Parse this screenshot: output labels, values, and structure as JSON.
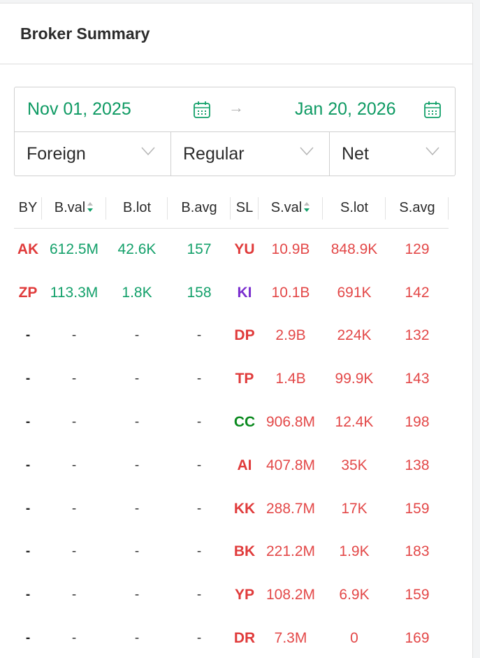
{
  "panel": {
    "title": "Broker Summary"
  },
  "date_range": {
    "start": "Nov 01, 2025",
    "end": "Jan 20, 2026",
    "arrow": "→"
  },
  "selects": {
    "investor": "Foreign",
    "market": "Regular",
    "mode": "Net"
  },
  "columns": [
    "BY",
    "B.val",
    "B.lot",
    "B.avg",
    "SL",
    "S.val",
    "S.lot",
    "S.avg"
  ],
  "rows": [
    {
      "by": "AK",
      "bval": "612.5M",
      "blot": "42.6K",
      "bavg": "157",
      "sl": "YU",
      "sl_color": "red",
      "sval": "10.9B",
      "slot": "848.9K",
      "savg": "129"
    },
    {
      "by": "ZP",
      "bval": "113.3M",
      "blot": "1.8K",
      "bavg": "158",
      "sl": "KI",
      "sl_color": "purple",
      "sval": "10.1B",
      "slot": "691K",
      "savg": "142"
    },
    {
      "by": "-",
      "bval": "-",
      "blot": "-",
      "bavg": "-",
      "sl": "DP",
      "sl_color": "red",
      "sval": "2.9B",
      "slot": "224K",
      "savg": "132"
    },
    {
      "by": "-",
      "bval": "-",
      "blot": "-",
      "bavg": "-",
      "sl": "TP",
      "sl_color": "red",
      "sval": "1.4B",
      "slot": "99.9K",
      "savg": "143"
    },
    {
      "by": "-",
      "bval": "-",
      "blot": "-",
      "bavg": "-",
      "sl": "CC",
      "sl_color": "dkgreen",
      "sval": "906.8M",
      "slot": "12.4K",
      "savg": "198"
    },
    {
      "by": "-",
      "bval": "-",
      "blot": "-",
      "bavg": "-",
      "sl": "AI",
      "sl_color": "red",
      "sval": "407.8M",
      "slot": "35K",
      "savg": "138"
    },
    {
      "by": "-",
      "bval": "-",
      "blot": "-",
      "bavg": "-",
      "sl": "KK",
      "sl_color": "red",
      "sval": "288.7M",
      "slot": "17K",
      "savg": "159"
    },
    {
      "by": "-",
      "bval": "-",
      "blot": "-",
      "bavg": "-",
      "sl": "BK",
      "sl_color": "red",
      "sval": "221.2M",
      "slot": "1.9K",
      "savg": "183"
    },
    {
      "by": "-",
      "bval": "-",
      "blot": "-",
      "bavg": "-",
      "sl": "YP",
      "sl_color": "red",
      "sval": "108.2M",
      "slot": "6.9K",
      "savg": "159"
    },
    {
      "by": "-",
      "bval": "-",
      "blot": "-",
      "bavg": "-",
      "sl": "DR",
      "sl_color": "red",
      "sval": "7.3M",
      "slot": "0",
      "savg": "169"
    }
  ],
  "colors": {
    "buy": "#13a06a",
    "sell": "#e34848",
    "accent": "#0e9a63"
  },
  "icons": {
    "calendar": "calendar-icon",
    "chevron": "chevron-down-icon",
    "sort": "sort-icon"
  }
}
